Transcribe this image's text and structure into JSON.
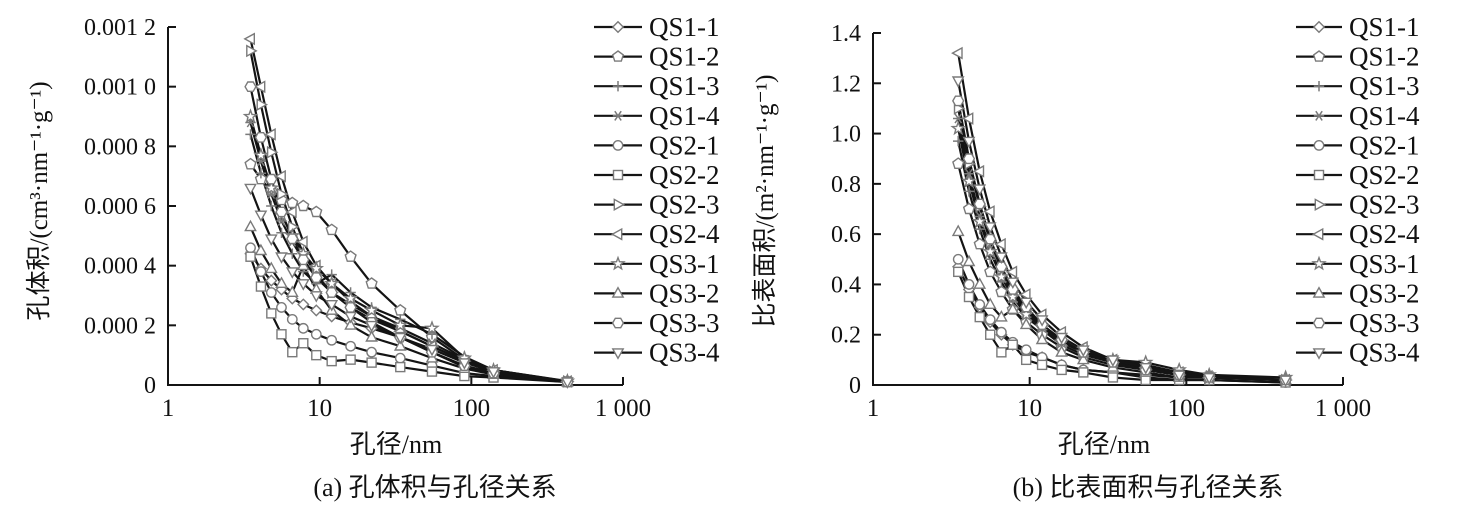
{
  "figure": {
    "background": "#ffffff",
    "line_color": "#141414",
    "marker_color": "#7a7a7a",
    "text_color": "#111111"
  },
  "chart_data": [
    {
      "id": "a",
      "type": "line",
      "caption": "(a) 孔体积与孔径关系",
      "xlabel": "孔径/nm",
      "ylabel": "孔体积/(cm³·nm⁻¹·g⁻¹)",
      "x_scale": "log",
      "grid": false,
      "legend_position": "right-of-plot-top",
      "xlim": [
        1,
        1000
      ],
      "ylim": [
        0,
        0.0012
      ],
      "x_tick_values": [
        1,
        10,
        100,
        1000
      ],
      "x_tick_labels": [
        "1",
        "10",
        "100",
        "1 000"
      ],
      "y_tick_values": [
        0,
        0.0002,
        0.0004,
        0.0006,
        0.0008,
        0.001,
        0.0012
      ],
      "y_tick_labels": [
        "0",
        "0.000 2",
        "0.000 4",
        "0.000 6",
        "0.000 8",
        "0.001 0",
        "0.001 2"
      ],
      "x": [
        3.5,
        4.1,
        4.8,
        5.6,
        6.6,
        7.8,
        9.5,
        12,
        16,
        22,
        34,
        55,
        90,
        140,
        430
      ],
      "series": [
        {
          "name": "QS1-1",
          "marker": "diamond",
          "values": [
            0.00044,
            0.00039,
            0.00035,
            0.00032,
            0.00029,
            0.00027,
            0.00025,
            0.00023,
            0.00021,
            0.00019,
            0.00016,
            0.00011,
            6e-05,
            3.5e-05,
            1e-05
          ]
        },
        {
          "name": "QS1-2",
          "marker": "pentagon",
          "values": [
            0.00074,
            0.00069,
            0.00065,
            0.00062,
            0.00061,
            0.0006,
            0.00058,
            0.00052,
            0.00043,
            0.00034,
            0.00025,
            0.00016,
            8.5e-05,
            4.5e-05,
            1.2e-05
          ]
        },
        {
          "name": "QS1-3",
          "marker": "plus",
          "values": [
            0.00084,
            0.00071,
            0.0006,
            0.00051,
            0.00044,
            0.00038,
            0.00034,
            0.00037,
            0.00031,
            0.00026,
            0.00022,
            0.00017,
            9.5e-05,
            5e-05,
            1.2e-05
          ]
        },
        {
          "name": "QS1-4",
          "marker": "asterisk",
          "values": [
            0.00088,
            0.00075,
            0.00064,
            0.00055,
            0.00048,
            0.00042,
            0.00036,
            0.00031,
            0.00027,
            0.00023,
            0.00019,
            0.00014,
            8.5e-05,
            3.5e-05,
            1e-05
          ]
        },
        {
          "name": "QS2-1",
          "marker": "circle",
          "values": [
            0.00046,
            0.00038,
            0.00031,
            0.00026,
            0.00022,
            0.00019,
            0.00017,
            0.00015,
            0.00013,
            0.00011,
            9e-05,
            6.5e-05,
            4e-05,
            3e-05,
            1e-05
          ]
        },
        {
          "name": "QS2-2",
          "marker": "square",
          "values": [
            0.00043,
            0.00033,
            0.00024,
            0.00017,
            0.00011,
            0.00014,
            0.0001,
            8e-05,
            8.5e-05,
            7.5e-05,
            6e-05,
            4.5e-05,
            3e-05,
            2.5e-05,
            1e-05
          ]
        },
        {
          "name": "QS2-3",
          "marker": "triangle-right",
          "values": [
            0.00112,
            0.00094,
            0.00078,
            0.00064,
            0.00053,
            0.00044,
            0.00037,
            0.00031,
            0.00026,
            0.00022,
            0.00018,
            0.00013,
            8e-05,
            4.5e-05,
            1.2e-05
          ]
        },
        {
          "name": "QS2-4",
          "marker": "triangle-left",
          "values": [
            0.00116,
            0.001,
            0.00084,
            0.0007,
            0.00058,
            0.00048,
            0.0004,
            0.00034,
            0.00028,
            0.00023,
            0.00018,
            0.00013,
            8e-05,
            5e-05,
            1.2e-05
          ]
        },
        {
          "name": "QS3-1",
          "marker": "star",
          "values": [
            0.0009,
            0.00077,
            0.00066,
            0.00057,
            0.0005,
            0.00044,
            0.00039,
            0.00034,
            0.00029,
            0.00025,
            0.0002,
            0.00019,
            9e-05,
            5e-05,
            1.3e-05
          ]
        },
        {
          "name": "QS3-2",
          "marker": "triangle-up",
          "values": [
            0.00053,
            0.00045,
            0.00039,
            0.00034,
            0.00031,
            0.0004,
            0.00032,
            0.00025,
            0.0002,
            0.00016,
            0.00013,
            9e-05,
            5.5e-05,
            3.5e-05,
            1e-05
          ]
        },
        {
          "name": "QS3-3",
          "marker": "hexagon",
          "values": [
            0.001,
            0.00083,
            0.00069,
            0.00058,
            0.00049,
            0.00042,
            0.00036,
            0.00031,
            0.00026,
            0.00021,
            0.00016,
            0.00011,
            6.5e-05,
            4e-05,
            1e-05
          ]
        },
        {
          "name": "QS3-4",
          "marker": "triangle-down",
          "values": [
            0.00066,
            0.00057,
            0.00049,
            0.00043,
            0.00038,
            0.00034,
            0.0003,
            0.00027,
            0.00023,
            0.0002,
            0.00016,
            0.00012,
            7.5e-05,
            4.5e-05,
            1.1e-05
          ]
        }
      ]
    },
    {
      "id": "b",
      "type": "line",
      "caption": "(b) 比表面积与孔径关系",
      "xlabel": "孔径/nm",
      "ylabel": "比表面积/(m²·nm⁻¹·g⁻¹)",
      "x_scale": "log",
      "grid": false,
      "legend_position": "right-of-plot-top",
      "xlim": [
        1,
        1000
      ],
      "ylim": [
        0,
        1.4
      ],
      "x_tick_values": [
        1,
        10,
        100,
        1000
      ],
      "x_tick_labels": [
        "1",
        "10",
        "100",
        "1 000"
      ],
      "y_tick_values": [
        0,
        0.2,
        0.4,
        0.6,
        0.8,
        1.0,
        1.2,
        1.4
      ],
      "y_tick_labels": [
        "0",
        "0.2",
        "0.4",
        "0.6",
        "0.8",
        "1.0",
        "1.2",
        "1.4"
      ],
      "x": [
        3.5,
        4.1,
        4.8,
        5.6,
        6.6,
        7.8,
        9.5,
        12,
        16,
        22,
        34,
        55,
        90,
        140,
        430
      ],
      "series": [
        {
          "name": "QS1-1",
          "marker": "diamond",
          "values": [
            0.47,
            0.38,
            0.31,
            0.25,
            0.2,
            0.16,
            0.13,
            0.11,
            0.08,
            0.06,
            0.05,
            0.04,
            0.03,
            0.03,
            0.02
          ]
        },
        {
          "name": "QS1-2",
          "marker": "pentagon",
          "values": [
            0.88,
            0.7,
            0.56,
            0.45,
            0.37,
            0.3,
            0.25,
            0.2,
            0.15,
            0.11,
            0.08,
            0.06,
            0.04,
            0.03,
            0.02
          ]
        },
        {
          "name": "QS1-3",
          "marker": "plus",
          "values": [
            0.97,
            0.77,
            0.62,
            0.5,
            0.41,
            0.33,
            0.27,
            0.22,
            0.16,
            0.12,
            0.09,
            0.07,
            0.05,
            0.04,
            0.02
          ]
        },
        {
          "name": "QS1-4",
          "marker": "asterisk",
          "values": [
            1.06,
            0.84,
            0.67,
            0.54,
            0.44,
            0.36,
            0.29,
            0.23,
            0.17,
            0.13,
            0.1,
            0.08,
            0.05,
            0.04,
            0.02
          ]
        },
        {
          "name": "QS2-1",
          "marker": "circle",
          "values": [
            0.5,
            0.4,
            0.32,
            0.26,
            0.21,
            0.17,
            0.14,
            0.11,
            0.08,
            0.06,
            0.05,
            0.03,
            0.02,
            0.02,
            0.01
          ]
        },
        {
          "name": "QS2-2",
          "marker": "square",
          "values": [
            0.45,
            0.35,
            0.27,
            0.2,
            0.13,
            0.16,
            0.1,
            0.08,
            0.06,
            0.05,
            0.03,
            0.02,
            0.02,
            0.02,
            0.01
          ]
        },
        {
          "name": "QS2-3",
          "marker": "triangle-right",
          "values": [
            1.1,
            0.88,
            0.71,
            0.57,
            0.46,
            0.37,
            0.3,
            0.24,
            0.18,
            0.13,
            0.09,
            0.06,
            0.04,
            0.03,
            0.02
          ]
        },
        {
          "name": "QS2-4",
          "marker": "triangle-left",
          "values": [
            1.32,
            1.06,
            0.85,
            0.69,
            0.56,
            0.45,
            0.36,
            0.28,
            0.21,
            0.15,
            0.1,
            0.07,
            0.05,
            0.03,
            0.02
          ]
        },
        {
          "name": "QS3-1",
          "marker": "star",
          "values": [
            1.02,
            0.81,
            0.65,
            0.53,
            0.43,
            0.35,
            0.28,
            0.23,
            0.17,
            0.13,
            0.1,
            0.09,
            0.06,
            0.04,
            0.03
          ]
        },
        {
          "name": "QS3-2",
          "marker": "triangle-up",
          "values": [
            0.61,
            0.49,
            0.4,
            0.32,
            0.27,
            0.3,
            0.24,
            0.18,
            0.13,
            0.1,
            0.07,
            0.05,
            0.03,
            0.03,
            0.02
          ]
        },
        {
          "name": "QS3-3",
          "marker": "hexagon",
          "values": [
            1.13,
            0.9,
            0.72,
            0.58,
            0.47,
            0.38,
            0.31,
            0.24,
            0.18,
            0.13,
            0.09,
            0.06,
            0.04,
            0.03,
            0.02
          ]
        },
        {
          "name": "QS3-4",
          "marker": "triangle-down",
          "values": [
            1.21,
            0.97,
            0.78,
            0.63,
            0.51,
            0.41,
            0.33,
            0.26,
            0.19,
            0.14,
            0.1,
            0.07,
            0.04,
            0.03,
            0.02
          ]
        }
      ]
    }
  ]
}
